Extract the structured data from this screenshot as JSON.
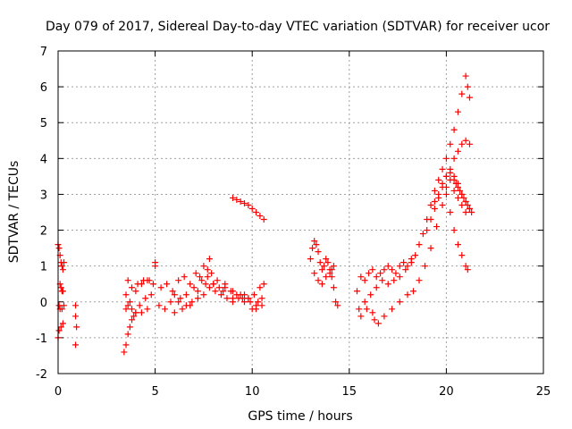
{
  "chart_data": {
    "type": "scatter",
    "title": "Day 079 of 2017, Sidereal Day-to-day VTEC variation (SDTVAR) for receiver ucor",
    "xlabel": "GPS time / hours",
    "ylabel": "SDTVAR / TECUs",
    "xlim": [
      0,
      25
    ],
    "ylim": [
      -2,
      7
    ],
    "xticks": [
      0,
      5,
      10,
      15,
      20,
      25
    ],
    "yticks": [
      -2,
      -1,
      0,
      1,
      2,
      3,
      4,
      5,
      6,
      7
    ],
    "xtick_labels": [
      "0",
      "5",
      "10",
      "15",
      "20",
      "25"
    ],
    "ytick_labels": [
      "-2",
      "-1",
      "0",
      "1",
      "2",
      "3",
      "4",
      "5",
      "6",
      "7"
    ],
    "grid": true,
    "legend": "none",
    "marker": "+",
    "color": "#ff0000",
    "series": [
      {
        "name": "SDTVAR",
        "x": [
          0.0,
          0.05,
          0.1,
          0.15,
          0.2,
          0.25,
          0.3,
          0.1,
          0.15,
          0.2,
          0.25,
          0.05,
          0.1,
          0.2,
          0.3,
          0.0,
          0.05,
          0.15,
          0.25,
          0.9,
          0.9,
          0.95,
          0.9,
          3.4,
          3.5,
          3.6,
          3.7,
          3.8,
          3.9,
          4.0,
          4.2,
          4.5,
          4.8,
          3.5,
          3.7,
          4.0,
          4.3,
          4.6,
          4.9,
          5.0,
          5.0,
          3.6,
          3.8,
          4.1,
          4.4,
          4.7,
          3.5,
          3.6,
          3.8,
          4.0,
          4.3,
          4.6,
          5.2,
          5.5,
          5.8,
          6.0,
          6.3,
          6.6,
          6.9,
          7.2,
          7.5,
          7.8,
          8.1,
          8.4,
          8.7,
          9.0,
          9.3,
          9.6,
          9.9,
          10.2,
          10.5,
          5.3,
          5.6,
          5.9,
          6.2,
          6.5,
          6.8,
          7.1,
          7.4,
          7.7,
          8.0,
          8.3,
          8.6,
          8.9,
          9.2,
          9.5,
          9.8,
          10.1,
          10.4,
          10.6,
          6.0,
          6.4,
          6.8,
          7.2,
          7.6,
          7.7,
          7.8,
          7.9,
          8.2,
          8.6,
          9.0,
          9.4,
          9.8,
          10.2,
          10.5,
          6.2,
          6.6,
          7.0,
          7.3,
          7.5,
          8.0,
          8.5,
          9.0,
          9.6,
          10.0,
          10.3,
          9.0,
          9.2,
          9.4,
          9.6,
          9.8,
          10.0,
          10.2,
          10.4,
          10.6,
          13.0,
          13.1,
          13.2,
          13.3,
          13.4,
          13.5,
          13.6,
          13.7,
          13.8,
          13.9,
          14.0,
          14.1,
          14.2,
          14.3,
          14.4,
          13.2,
          13.4,
          13.6,
          13.8,
          14.0,
          14.1,
          14.2,
          15.4,
          15.6,
          15.8,
          16.0,
          16.2,
          16.4,
          16.6,
          16.8,
          17.0,
          17.2,
          17.4,
          17.6,
          17.8,
          18.0,
          15.5,
          15.8,
          16.1,
          16.4,
          16.7,
          17.0,
          17.3,
          17.6,
          17.9,
          18.2,
          15.6,
          15.9,
          16.2,
          16.3,
          16.5,
          16.8,
          17.2,
          17.6,
          18.0,
          18.2,
          18.4,
          18.6,
          18.8,
          19.0,
          19.2,
          19.4,
          19.6,
          19.8,
          20.0,
          20.2,
          20.4,
          20.6,
          20.8,
          21.0,
          21.1,
          21.2,
          18.3,
          18.6,
          18.9,
          19.2,
          19.5,
          19.8,
          20.0,
          20.2,
          20.4,
          20.6,
          20.8,
          21.0,
          21.2,
          19.0,
          19.2,
          19.4,
          19.6,
          19.8,
          20.0,
          20.2,
          20.4,
          20.6,
          20.8,
          21.0,
          21.2,
          19.4,
          19.6,
          19.8,
          20.0,
          20.2,
          20.4,
          20.6,
          20.8,
          21.0,
          20.0,
          20.2,
          20.4,
          20.6,
          20.8,
          21.0,
          21.1,
          20.4,
          20.5,
          20.6,
          20.7,
          20.8,
          20.9,
          21.0,
          21.1,
          21.2,
          21.3
        ],
        "y": [
          1.6,
          1.5,
          1.3,
          1.1,
          1.0,
          0.9,
          1.1,
          0.5,
          0.4,
          0.3,
          0.3,
          -0.1,
          -0.2,
          -0.2,
          -0.1,
          -1.0,
          -0.8,
          -0.7,
          -0.6,
          -0.1,
          -0.4,
          -0.7,
          -1.2,
          -1.4,
          -1.2,
          -0.9,
          -0.7,
          -0.5,
          -0.4,
          -0.3,
          -0.1,
          0.1,
          0.2,
          -0.2,
          0.0,
          0.3,
          0.5,
          0.6,
          0.5,
          1.0,
          1.1,
          0.6,
          0.4,
          0.5,
          0.6,
          0.6,
          0.2,
          -0.1,
          -0.2,
          -0.3,
          -0.3,
          -0.2,
          -0.1,
          -0.2,
          0.0,
          0.2,
          0.1,
          -0.1,
          0.0,
          0.3,
          0.2,
          0.4,
          0.3,
          0.2,
          0.1,
          0.0,
          0.1,
          0.2,
          0.0,
          -0.1,
          0.1,
          0.4,
          0.5,
          0.3,
          0.6,
          0.7,
          0.5,
          0.8,
          0.6,
          0.7,
          0.5,
          0.4,
          0.5,
          0.3,
          0.2,
          0.1,
          0.1,
          0.2,
          0.4,
          0.5,
          -0.3,
          -0.2,
          -0.1,
          0.1,
          0.5,
          0.9,
          1.2,
          0.8,
          0.6,
          0.4,
          0.3,
          0.2,
          0.1,
          -0.2,
          -0.1,
          0.0,
          0.2,
          0.4,
          0.7,
          1.0,
          0.5,
          0.3,
          0.1,
          0.0,
          -0.2,
          0.0,
          2.9,
          2.85,
          2.8,
          2.75,
          2.7,
          2.6,
          2.5,
          2.4,
          2.3,
          1.2,
          1.5,
          1.7,
          1.6,
          1.4,
          1.1,
          0.9,
          1.0,
          1.2,
          1.1,
          0.9,
          0.7,
          0.4,
          0.0,
          -0.1,
          0.8,
          0.6,
          0.5,
          0.7,
          0.8,
          0.9,
          1.0,
          0.3,
          0.7,
          0.6,
          0.8,
          0.9,
          0.7,
          0.8,
          0.9,
          1.0,
          0.9,
          0.8,
          1.0,
          1.1,
          1.0,
          -0.2,
          0.0,
          0.2,
          0.4,
          0.6,
          0.5,
          0.6,
          0.7,
          0.9,
          1.1,
          -0.4,
          -0.2,
          -0.3,
          -0.5,
          -0.6,
          -0.4,
          -0.2,
          0.0,
          0.2,
          1.2,
          1.3,
          1.6,
          1.9,
          2.3,
          2.7,
          3.1,
          3.4,
          3.7,
          4.0,
          4.4,
          4.8,
          5.3,
          5.8,
          6.3,
          6.0,
          5.7,
          0.3,
          0.6,
          1.0,
          1.5,
          2.1,
          2.7,
          3.2,
          3.6,
          4.0,
          4.2,
          4.4,
          4.5,
          4.4,
          2.0,
          2.3,
          2.6,
          2.9,
          3.2,
          3.5,
          3.7,
          3.5,
          3.3,
          3.0,
          2.8,
          2.6,
          2.8,
          3.0,
          3.3,
          3.5,
          3.4,
          3.1,
          2.9,
          2.7,
          2.5,
          3.0,
          2.5,
          2.0,
          1.6,
          1.3,
          1.0,
          0.9,
          3.4,
          3.3,
          3.2,
          3.1,
          3.0,
          2.9,
          2.8,
          2.7,
          2.6,
          2.5
        ]
      }
    ]
  }
}
